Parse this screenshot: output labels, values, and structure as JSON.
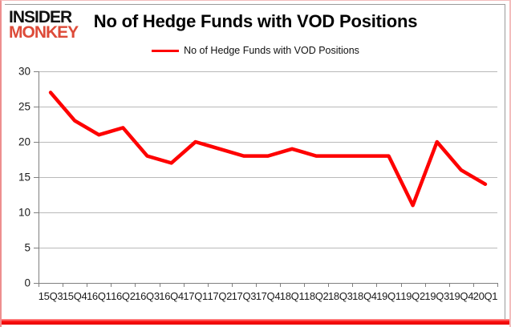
{
  "brand": {
    "line1": "INSIDER",
    "line2": "MONKEY",
    "line1_color": "#111111",
    "line2_color": "#DD4B39"
  },
  "header": {
    "title": "No of Hedge Funds with VOD Positions"
  },
  "legend": {
    "label": "No of Hedge Funds with VOD Positions",
    "line_color": "#FE0000"
  },
  "chart_data": {
    "type": "line",
    "title": "No of Hedge Funds with VOD Positions",
    "categories": [
      "15Q3",
      "15Q4",
      "16Q1",
      "16Q2",
      "16Q3",
      "16Q4",
      "17Q1",
      "17Q2",
      "17Q3",
      "17Q4",
      "18Q1",
      "18Q2",
      "18Q3",
      "18Q4",
      "19Q1",
      "19Q2",
      "19Q3",
      "19Q4",
      "20Q1"
    ],
    "series": [
      {
        "name": "No of Hedge Funds with VOD Positions",
        "color": "#FE0000",
        "values": [
          27,
          23,
          21,
          22,
          18,
          17,
          20,
          19,
          18,
          18,
          19,
          18,
          18,
          18,
          18,
          11,
          20,
          16,
          14
        ]
      }
    ],
    "xlabel": "",
    "ylabel": "",
    "ylim": [
      0,
      30
    ],
    "ytick_step": 5,
    "yticks": [
      0,
      5,
      10,
      15,
      20,
      25,
      30
    ],
    "grid": true,
    "legend_position": "top",
    "colors": {
      "gridline": "#b9b9b9",
      "axis": "#7f7f7f",
      "tick_label": "#1a1a1a"
    }
  }
}
